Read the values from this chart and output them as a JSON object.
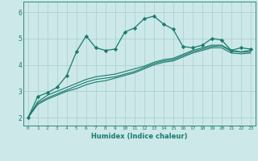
{
  "xlabel": "Humidex (Indice chaleur)",
  "background_color": "#cce8e8",
  "grid_color": "#aacece",
  "line_color": "#1a7a6e",
  "xlim": [
    -0.5,
    23.5
  ],
  "ylim": [
    1.7,
    6.4
  ],
  "yticks": [
    2,
    3,
    4,
    5,
    6
  ],
  "xticks": [
    0,
    1,
    2,
    3,
    4,
    5,
    6,
    7,
    8,
    9,
    10,
    11,
    12,
    13,
    14,
    15,
    16,
    17,
    18,
    19,
    20,
    21,
    22,
    23
  ],
  "line1_x": [
    0,
    1,
    2,
    3,
    4,
    5,
    6,
    7,
    8,
    9,
    10,
    11,
    12,
    13,
    14,
    15,
    16,
    17,
    18,
    19,
    20,
    21,
    22,
    23
  ],
  "line1_y": [
    2.0,
    2.8,
    2.95,
    3.15,
    3.6,
    4.5,
    5.1,
    4.65,
    4.55,
    4.6,
    5.25,
    5.4,
    5.75,
    5.85,
    5.55,
    5.35,
    4.7,
    4.65,
    4.75,
    5.0,
    4.95,
    4.55,
    4.65,
    4.6
  ],
  "line2_x": [
    0,
    1,
    2,
    3,
    4,
    5,
    6,
    7,
    8,
    9,
    10,
    11,
    12,
    13,
    14,
    15,
    16,
    17,
    18,
    19,
    20,
    21,
    22,
    23
  ],
  "line2_y": [
    2.0,
    2.6,
    2.85,
    3.0,
    3.15,
    3.3,
    3.45,
    3.55,
    3.6,
    3.65,
    3.75,
    3.85,
    3.95,
    4.1,
    4.2,
    4.25,
    4.4,
    4.55,
    4.65,
    4.75,
    4.75,
    4.55,
    4.5,
    4.55
  ],
  "line3_x": [
    0,
    1,
    2,
    3,
    4,
    5,
    6,
    7,
    8,
    9,
    10,
    11,
    12,
    13,
    14,
    15,
    16,
    17,
    18,
    19,
    20,
    21,
    22,
    23
  ],
  "line3_y": [
    2.0,
    2.55,
    2.75,
    2.9,
    3.05,
    3.2,
    3.35,
    3.45,
    3.5,
    3.55,
    3.65,
    3.75,
    3.9,
    4.05,
    4.15,
    4.2,
    4.35,
    4.5,
    4.6,
    4.7,
    4.72,
    4.52,
    4.48,
    4.5
  ],
  "line4_x": [
    0,
    1,
    2,
    3,
    4,
    5,
    6,
    7,
    8,
    9,
    10,
    11,
    12,
    13,
    14,
    15,
    16,
    17,
    18,
    19,
    20,
    21,
    22,
    23
  ],
  "line4_y": [
    2.0,
    2.5,
    2.7,
    2.85,
    3.0,
    3.1,
    3.25,
    3.35,
    3.4,
    3.5,
    3.6,
    3.7,
    3.85,
    4.0,
    4.1,
    4.15,
    4.3,
    4.45,
    4.55,
    4.65,
    4.65,
    4.45,
    4.42,
    4.45
  ]
}
